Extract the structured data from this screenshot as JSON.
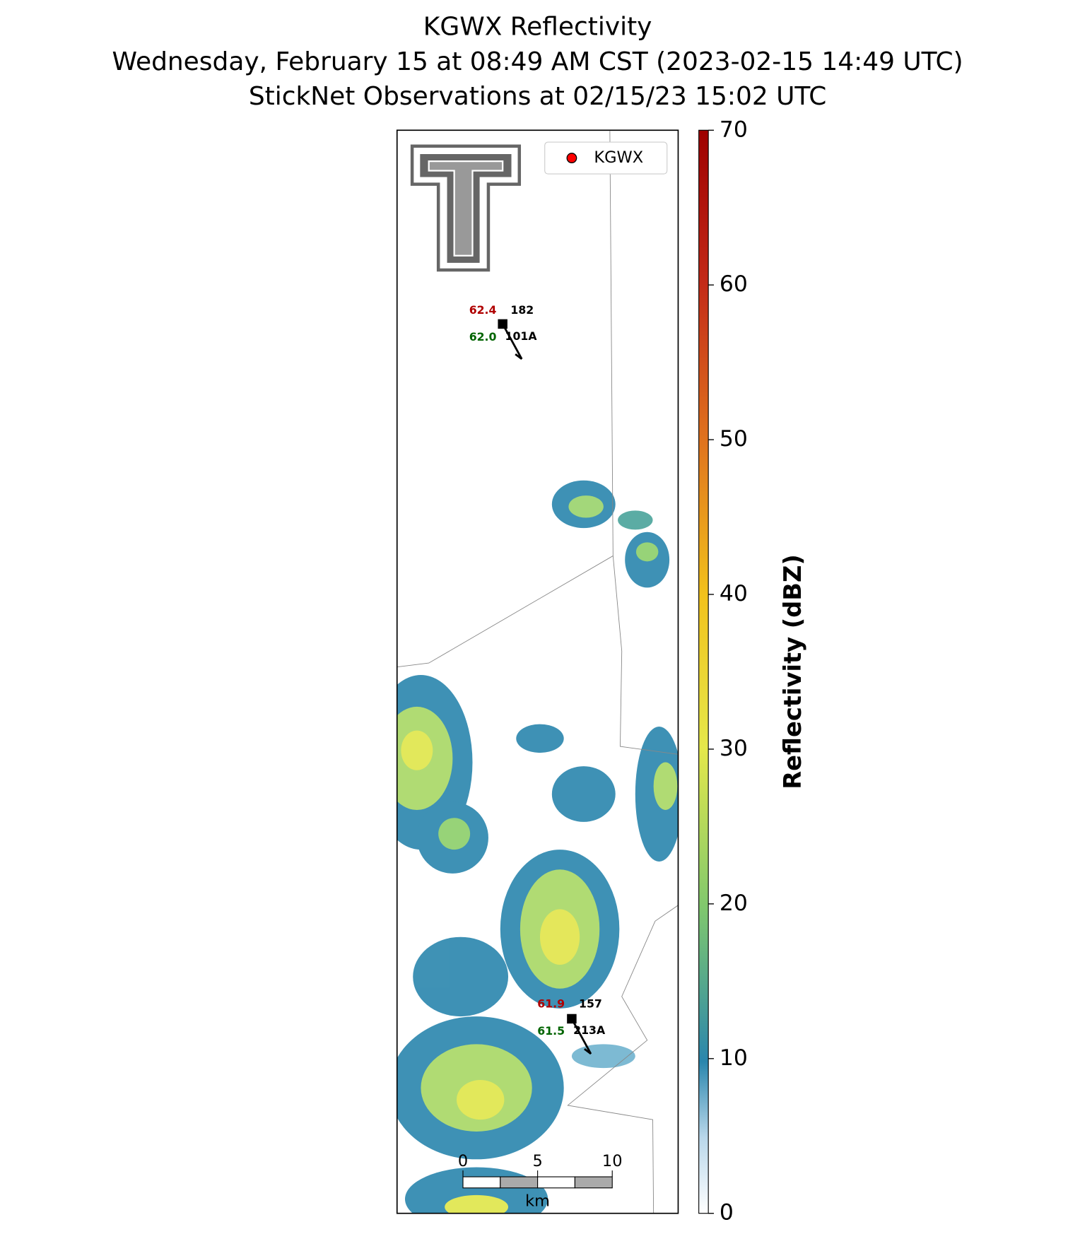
{
  "title": [
    "KGWX Reflectivity",
    "Wednesday, February 15 at 08:49 AM CST (2023-02-15 14:49 UTC)",
    "StickNet Observations at 02/15/23 15:02 UTC"
  ],
  "legend": {
    "label": "KGWX",
    "color": "#ff0000"
  },
  "colorbar": {
    "label": "Reflectivity (dBZ)",
    "ylim": [
      0,
      70
    ],
    "ticks": [
      0,
      10,
      20,
      30,
      40,
      50,
      60,
      70
    ]
  },
  "stations": [
    {
      "temperature": "62.4",
      "dewpoint": "62.0",
      "value": "182",
      "id": "101A"
    },
    {
      "temperature": "61.9",
      "dewpoint": "61.5",
      "value": "157",
      "id": "213A"
    }
  ],
  "scale_bar": {
    "ticks": [
      0,
      5,
      10
    ],
    "unit": "km"
  }
}
